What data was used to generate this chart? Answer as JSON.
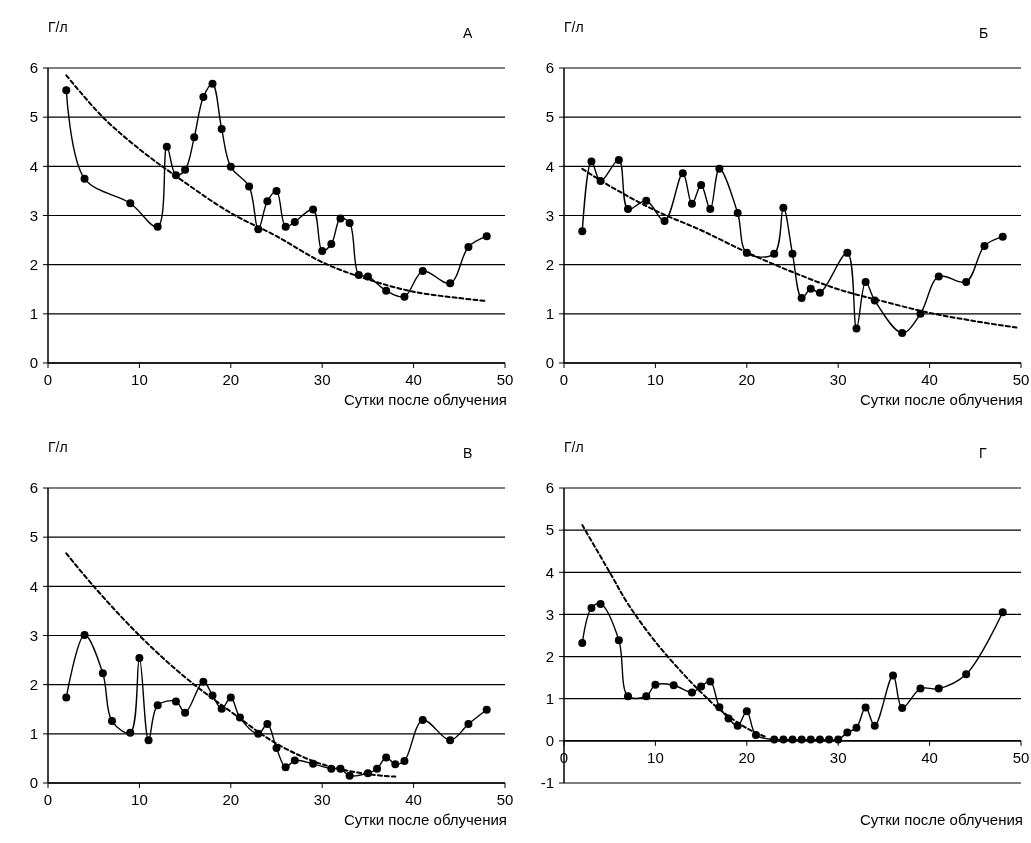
{
  "chart_data": [
    {
      "type": "line",
      "title": "А",
      "ylabel": "Г/л",
      "xlabel": "Сутки после облучения",
      "xlim": [
        0,
        50
      ],
      "xticks": [
        0,
        10,
        20,
        30,
        40,
        50
      ],
      "ylim": [
        0,
        6
      ],
      "yticks": [
        0,
        1,
        2,
        3,
        4,
        5,
        6
      ],
      "grid": "y",
      "marker": "circle",
      "series": [
        {
          "color": "#000000",
          "x": [
            2,
            4,
            9,
            12,
            13,
            14,
            15,
            16,
            17,
            18,
            19,
            20,
            22,
            23,
            24,
            25,
            26,
            27,
            29,
            30,
            31,
            32,
            33,
            34,
            35,
            37,
            39,
            41,
            44,
            46,
            48
          ],
          "values": [
            5.55,
            3.75,
            3.25,
            2.77,
            4.4,
            3.82,
            3.93,
            4.59,
            5.41,
            5.68,
            4.76,
            3.99,
            3.59,
            2.72,
            3.29,
            3.5,
            2.77,
            2.87,
            3.12,
            2.28,
            2.42,
            2.94,
            2.85,
            1.79,
            1.76,
            1.47,
            1.35,
            1.87,
            1.62,
            2.36,
            2.58
          ]
        },
        {
          "type": "line",
          "color": "#000000",
          "marker": "none",
          "line_style": "dashed",
          "x": [
            2,
            6,
            10,
            14,
            20,
            25,
            30,
            35,
            40,
            45,
            48
          ],
          "values": [
            5.85,
            5.0,
            4.35,
            3.8,
            3.05,
            2.58,
            2.05,
            1.7,
            1.45,
            1.32,
            1.26
          ]
        }
      ]
    },
    {
      "type": "line",
      "title": "Б",
      "ylabel": "Г/л",
      "xlabel": "Сутки после облучения",
      "xlim": [
        0,
        50
      ],
      "xticks": [
        0,
        10,
        20,
        30,
        40,
        50
      ],
      "ylim": [
        0,
        6
      ],
      "yticks": [
        0,
        1,
        2,
        3,
        4,
        5,
        6
      ],
      "grid": "y",
      "marker": "circle",
      "series": [
        {
          "color": "#000000",
          "x": [
            2,
            3,
            4,
            6,
            7,
            9,
            11,
            13,
            14,
            15,
            16,
            17,
            19,
            20,
            23,
            24,
            25,
            26,
            27,
            28,
            31,
            32,
            33,
            34,
            37,
            39,
            41,
            44,
            46,
            48
          ],
          "values": [
            2.68,
            4.1,
            3.7,
            4.13,
            3.13,
            3.3,
            2.89,
            3.86,
            3.24,
            3.62,
            3.13,
            3.95,
            3.05,
            2.24,
            2.22,
            3.16,
            2.22,
            1.32,
            1.51,
            1.43,
            2.24,
            0.7,
            1.65,
            1.27,
            0.61,
            1.0,
            1.76,
            1.65,
            2.38,
            2.57
          ]
        },
        {
          "type": "line",
          "color": "#000000",
          "marker": "none",
          "line_style": "dashed",
          "x": [
            2,
            5,
            10,
            15,
            20,
            25,
            30,
            35,
            40,
            45,
            49.5
          ],
          "values": [
            3.95,
            3.6,
            3.1,
            2.7,
            2.25,
            1.85,
            1.5,
            1.25,
            1.02,
            0.85,
            0.72
          ]
        }
      ]
    },
    {
      "type": "line",
      "title": "В",
      "ylabel": "Г/л",
      "xlabel": "Сутки после облучения",
      "xlim": [
        0,
        50
      ],
      "xticks": [
        0,
        10,
        20,
        30,
        40,
        50
      ],
      "ylim": [
        0,
        6
      ],
      "yticks": [
        0,
        1,
        2,
        3,
        4,
        5,
        6
      ],
      "grid": "y",
      "marker": "circle",
      "series": [
        {
          "color": "#000000",
          "x": [
            2,
            4,
            6,
            7,
            9,
            10,
            11,
            12,
            14,
            15,
            17,
            18,
            19,
            20,
            21,
            23,
            24,
            25,
            26,
            27,
            29,
            31,
            32,
            33,
            35,
            36,
            37,
            38,
            39,
            41,
            44,
            46,
            48
          ],
          "values": [
            1.74,
            3.01,
            2.23,
            1.26,
            1.02,
            2.54,
            0.87,
            1.58,
            1.66,
            1.43,
            2.06,
            1.78,
            1.51,
            1.74,
            1.33,
            1.0,
            1.2,
            0.71,
            0.32,
            0.46,
            0.39,
            0.29,
            0.29,
            0.15,
            0.2,
            0.29,
            0.52,
            0.38,
            0.45,
            1.28,
            0.87,
            1.2,
            1.49
          ]
        },
        {
          "type": "line",
          "color": "#000000",
          "marker": "none",
          "line_style": "dashed",
          "x": [
            2,
            5,
            10,
            15,
            20,
            25,
            30,
            35,
            38
          ],
          "values": [
            4.67,
            4.0,
            3.0,
            2.15,
            1.45,
            0.8,
            0.38,
            0.18,
            0.13
          ]
        }
      ]
    },
    {
      "type": "line",
      "title": "Г",
      "ylabel": "Г/л",
      "xlabel": "Сутки после облучения",
      "xlim": [
        0,
        50
      ],
      "xticks": [
        0,
        10,
        20,
        30,
        40,
        50
      ],
      "ylim": [
        -1,
        6
      ],
      "yticks": [
        -1,
        0,
        1,
        2,
        3,
        4,
        5,
        6
      ],
      "grid": "y",
      "marker": "circle",
      "series": [
        {
          "color": "#000000",
          "x": [
            2,
            3,
            4,
            6,
            7,
            9,
            10,
            12,
            14,
            15,
            16,
            17,
            18,
            19,
            20,
            21,
            23,
            24,
            25,
            26,
            27,
            28,
            29,
            30,
            31,
            32,
            33,
            34,
            36,
            37,
            39,
            41,
            44,
            48
          ],
          "values": [
            2.32,
            3.15,
            3.25,
            2.39,
            1.06,
            1.06,
            1.33,
            1.32,
            1.15,
            1.29,
            1.41,
            0.8,
            0.53,
            0.36,
            0.7,
            0.14,
            0.03,
            0.03,
            0.03,
            0.03,
            0.03,
            0.03,
            0.03,
            0.03,
            0.2,
            0.31,
            0.79,
            0.36,
            1.55,
            0.78,
            1.24,
            1.24,
            1.58,
            3.05
          ]
        },
        {
          "type": "line",
          "color": "#000000",
          "marker": "none",
          "line_style": "dashed",
          "x": [
            2,
            5,
            7,
            10,
            13,
            15,
            17,
            20,
            22
          ],
          "values": [
            5.12,
            4.0,
            3.25,
            2.35,
            1.6,
            1.15,
            0.75,
            0.3,
            0.1
          ]
        }
      ]
    }
  ]
}
